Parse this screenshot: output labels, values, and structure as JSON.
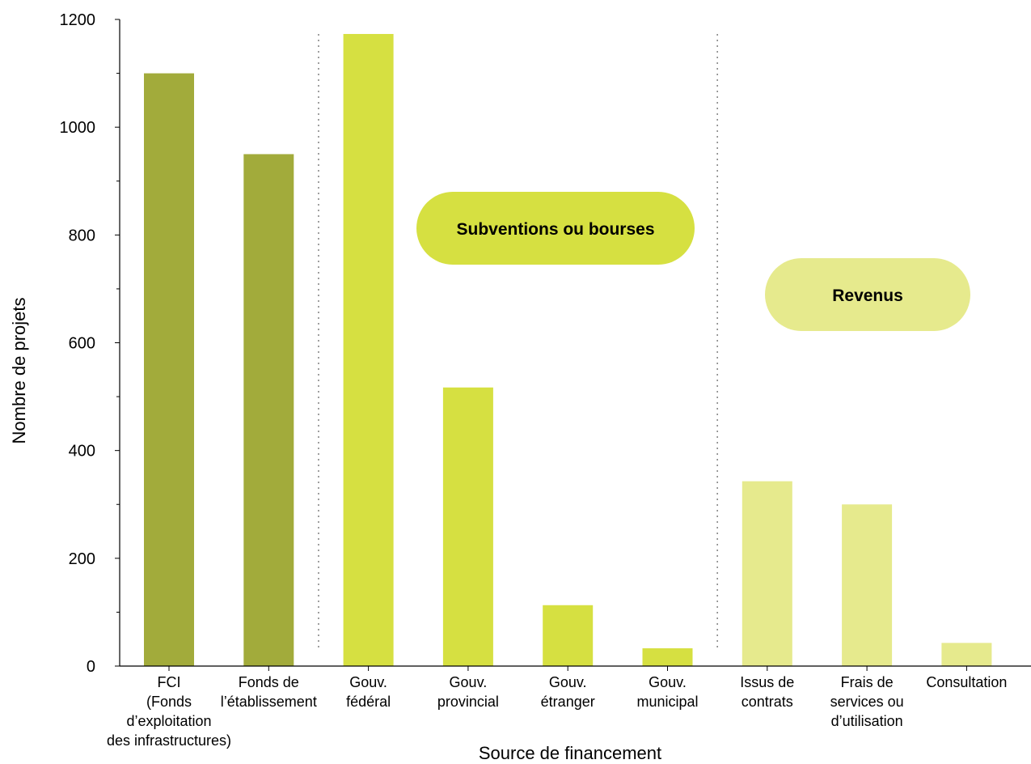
{
  "chart_data": {
    "type": "bar",
    "xlabel": "Source de financement",
    "ylabel": "Nombre de projets",
    "ylim": [
      0,
      1200
    ],
    "yticks": [
      0,
      200,
      400,
      600,
      800,
      1000,
      1200
    ],
    "grid": false,
    "categories": [
      [
        "FCI",
        "(Fonds",
        "d’exploitation",
        "des infrastructures)"
      ],
      [
        "Fonds de",
        "l’établissement"
      ],
      [
        "Gouv.",
        "fédéral"
      ],
      [
        "Gouv.",
        "provincial"
      ],
      [
        "Gouv.",
        "étranger"
      ],
      [
        "Gouv.",
        "municipal"
      ],
      [
        "Issus de",
        "contrats"
      ],
      [
        "Frais de",
        "services ou",
        "d’utilisation"
      ],
      [
        "Consultation"
      ]
    ],
    "values": [
      1100,
      950,
      1173,
      517,
      113,
      33,
      343,
      300,
      43
    ],
    "groups": [
      {
        "label": "",
        "color": "#a2ab3b",
        "indices": [
          0,
          1
        ]
      },
      {
        "label": "Subventions ou bourses",
        "color": "#d6e041",
        "indices": [
          2,
          3,
          4,
          5
        ]
      },
      {
        "label": "Revenus",
        "color": "#e6ea8d",
        "indices": [
          6,
          7,
          8
        ]
      }
    ]
  }
}
